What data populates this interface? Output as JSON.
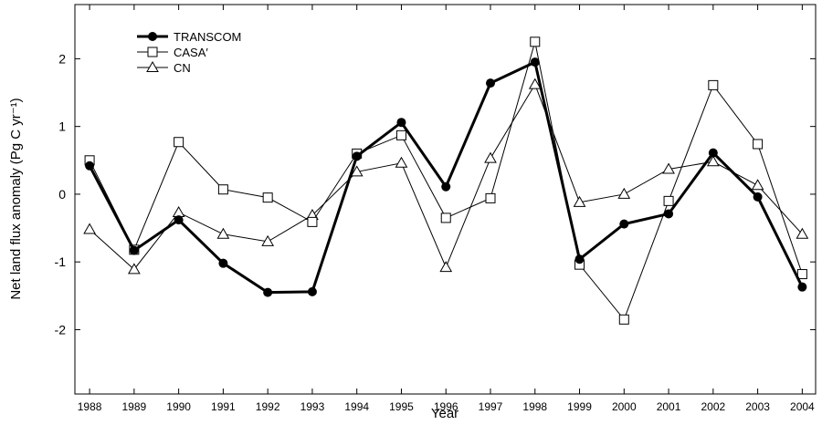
{
  "chart_data": {
    "type": "line",
    "xlabel": "Year",
    "ylabel": "Net land flux anomaly (Pg C yr⁻¹)",
    "x": [
      1988,
      1989,
      1990,
      1991,
      1992,
      1993,
      1994,
      1995,
      1996,
      1997,
      1998,
      1999,
      2000,
      2001,
      2002,
      2003,
      2004
    ],
    "series": [
      {
        "name": "TRANSCOM",
        "color": "#000000",
        "marker": "filled-circle",
        "width": 3,
        "values": [
          0.42,
          -0.83,
          -0.38,
          -1.02,
          -1.45,
          -1.44,
          0.56,
          1.06,
          0.11,
          1.64,
          1.95,
          -0.96,
          -0.44,
          -0.29,
          0.61,
          -0.04,
          -1.37
        ]
      },
      {
        "name": "CASA′",
        "color": "#000000",
        "marker": "open-square",
        "width": 1,
        "values": [
          0.5,
          -0.82,
          0.77,
          0.07,
          -0.05,
          -0.41,
          0.6,
          0.87,
          -0.35,
          -0.06,
          2.25,
          -1.04,
          -1.85,
          -0.1,
          1.61,
          0.74,
          -1.18
        ]
      },
      {
        "name": "CN",
        "color": "#000000",
        "marker": "open-triangle",
        "width": 1,
        "values": [
          -0.52,
          -1.11,
          -0.27,
          -0.59,
          -0.7,
          -0.31,
          0.33,
          0.46,
          -1.08,
          0.53,
          1.62,
          -0.12,
          0.0,
          0.37,
          0.48,
          0.13,
          -0.59
        ]
      }
    ],
    "xlim": [
      1987.67,
      2004.3
    ],
    "xticks": [
      1988,
      1989,
      1990,
      1991,
      1992,
      1993,
      1994,
      1995,
      1996,
      1997,
      1998,
      1999,
      2000,
      2001,
      2002,
      2003,
      2004
    ],
    "ylim": [
      -2.95,
      2.8
    ],
    "yticks": [
      -2,
      -1,
      0,
      1,
      2
    ],
    "grid": false,
    "legend": "top-left"
  }
}
